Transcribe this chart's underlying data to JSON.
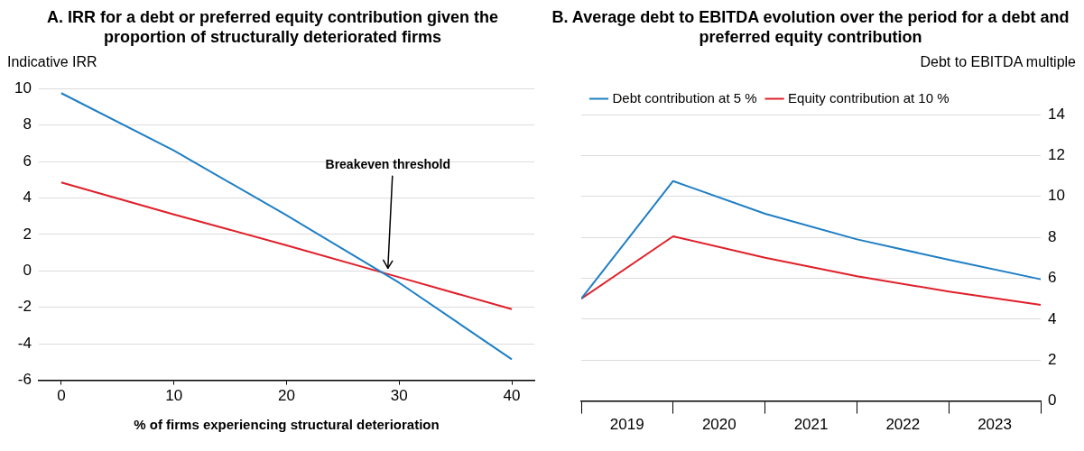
{
  "chart_data": [
    {
      "type": "line",
      "title": "A. IRR for a debt or preferred equity contribution given the proportion of structurally deteriorated firms",
      "ylabel": "Indicative IRR",
      "xlabel": "% of firms experiencing structural deterioration",
      "x": [
        0,
        10,
        20,
        30,
        40
      ],
      "series": [
        {
          "color": "#1f7fc4",
          "values": [
            9.75,
            6.6,
            3.05,
            -0.65,
            -4.85
          ]
        },
        {
          "color": "#e0202a",
          "values": [
            4.85,
            3.1,
            1.4,
            -0.35,
            -2.1
          ]
        }
      ],
      "xlim": [
        -2,
        42
      ],
      "xticks": [
        0,
        10,
        20,
        30,
        40
      ],
      "ylim": [
        -6,
        10
      ],
      "yticks": [
        -6,
        -4,
        -2,
        0,
        2,
        4,
        6,
        8,
        10
      ],
      "grid": "y",
      "annotations": [
        {
          "text": "Breakeven threshold",
          "x": 29,
          "y": 0
        }
      ]
    },
    {
      "type": "line",
      "title": "B. Average debt to EBITDA evolution over the period for a debt and preferred equity contribution",
      "y2label": "Debt to EBITDA multiple",
      "x": [
        "2019-01-01",
        "2020-01-01",
        "2021-01-01",
        "2022-01-01",
        "2023-01-01",
        "2024-01-01"
      ],
      "series": [
        {
          "name": "Debt contribution at 5 %",
          "color": "#1f7fc4",
          "axis": "y2",
          "values": [
            5.0,
            10.75,
            9.15,
            7.9,
            6.9,
            5.95
          ]
        },
        {
          "name": "Equity contribution at 10 %",
          "color": "#e0202a",
          "axis": "y2",
          "values": [
            5.0,
            8.05,
            7.0,
            6.1,
            5.35,
            4.7
          ]
        }
      ],
      "xlim": [
        "2019-01-01",
        "2024-01-01"
      ],
      "xticks": [
        {
          "value": "2019-01-01",
          "label": null
        },
        {
          "value": "2019-07-02",
          "label": "2019"
        },
        {
          "value": "2020-01-01",
          "label": null
        },
        {
          "value": "2020-07-02",
          "label": "2020"
        },
        {
          "value": "2021-01-01",
          "label": null
        },
        {
          "value": "2021-07-02",
          "label": "2021"
        },
        {
          "value": "2022-01-01",
          "label": null
        },
        {
          "value": "2022-07-02",
          "label": "2022"
        },
        {
          "value": "2023-01-01",
          "label": null
        },
        {
          "value": "2023-07-02",
          "label": "2023"
        },
        {
          "value": "2024-01-01",
          "label": null
        }
      ],
      "y2lim": [
        0,
        14
      ],
      "y2ticks": [
        0,
        2,
        4,
        6,
        8,
        10,
        12,
        14
      ],
      "grid": "y",
      "legend": "top left"
    }
  ]
}
